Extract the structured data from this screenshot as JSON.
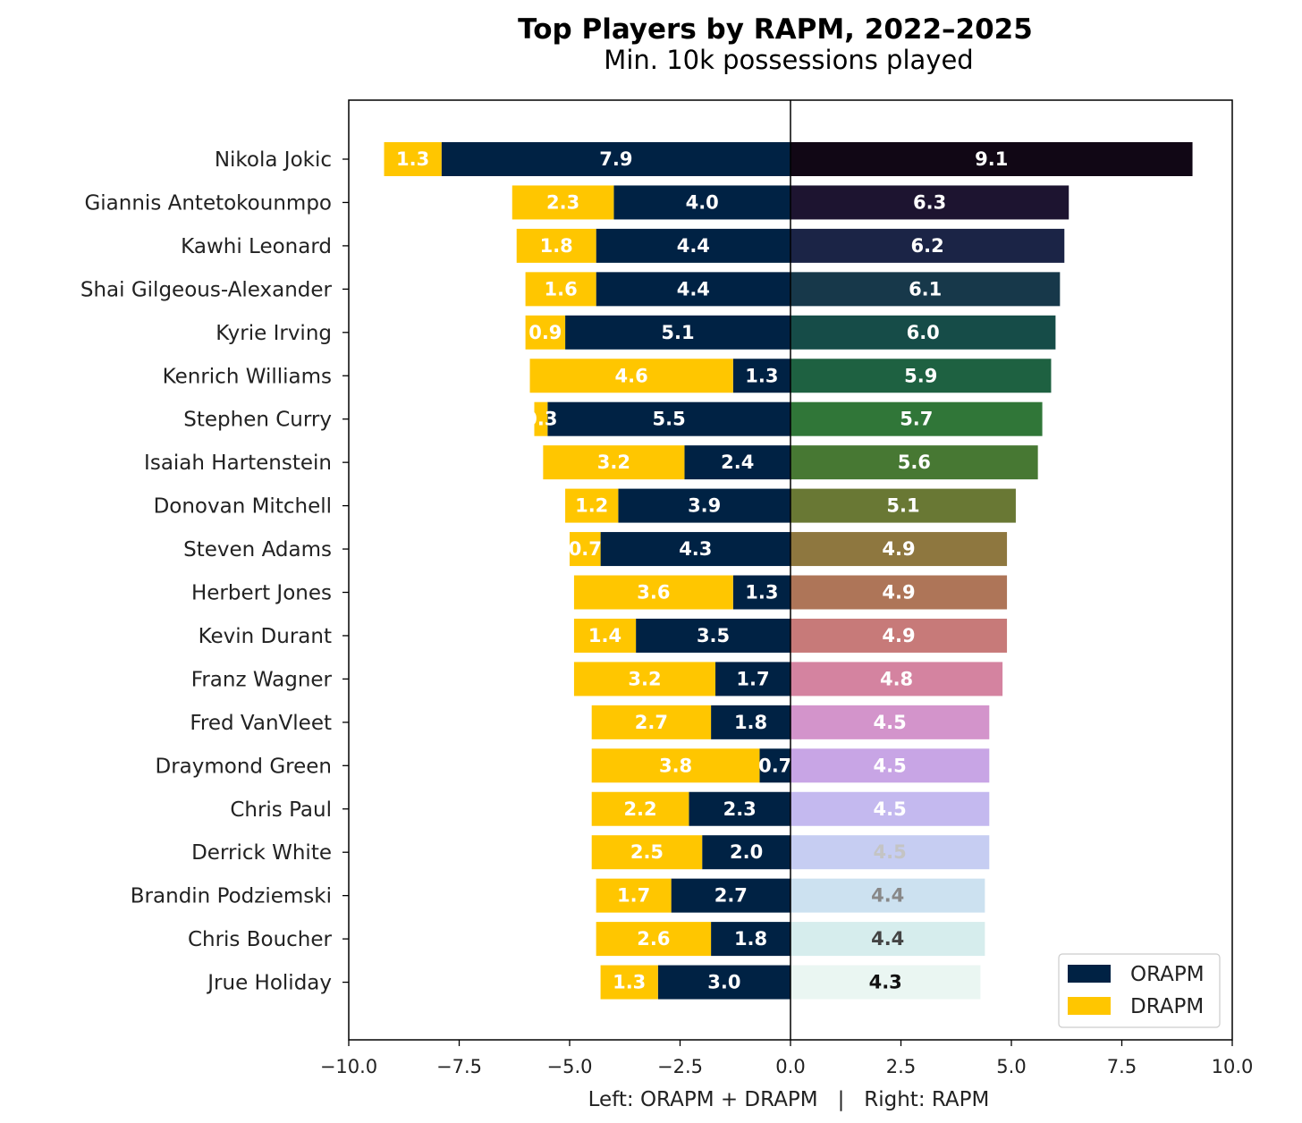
{
  "chart_data": {
    "type": "bar",
    "orientation": "horizontal-diverging",
    "title": "Top Players by RAPM, 2022–2025",
    "subtitle": "Min. 10k possessions played",
    "xlabel": "Left: ORAPM + DRAPM   |   Right: RAPM",
    "xlim": [
      -10,
      10
    ],
    "xticks": [
      -10.0,
      -7.5,
      -5.0,
      -2.5,
      0.0,
      2.5,
      5.0,
      7.5,
      10.0
    ],
    "xtick_labels": [
      "−10.0",
      "−7.5",
      "−5.0",
      "−2.5",
      "0.0",
      "2.5",
      "5.0",
      "7.5",
      "10.0"
    ],
    "categories": [
      "Nikola Jokic",
      "Giannis Antetokounmpo",
      "Kawhi Leonard",
      "Shai Gilgeous-Alexander",
      "Kyrie Irving",
      "Kenrich Williams",
      "Stephen Curry",
      "Isaiah Hartenstein",
      "Donovan Mitchell",
      "Steven Adams",
      "Herbert Jones",
      "Kevin Durant",
      "Franz Wagner",
      "Fred VanVleet",
      "Draymond Green",
      "Chris Paul",
      "Derrick White",
      "Brandin Podziemski",
      "Chris Boucher",
      "Jrue Holiday"
    ],
    "series": [
      {
        "name": "ORAPM",
        "color": "#002244",
        "values": [
          7.9,
          4.0,
          4.4,
          4.4,
          5.1,
          1.3,
          5.5,
          2.4,
          3.9,
          4.3,
          1.3,
          3.5,
          1.7,
          1.8,
          0.7,
          2.3,
          2.0,
          2.7,
          1.8,
          3.0
        ]
      },
      {
        "name": "DRAPM",
        "color": "#FFC600",
        "values": [
          1.3,
          2.3,
          1.8,
          1.6,
          0.9,
          4.6,
          0.3,
          3.2,
          1.2,
          0.7,
          3.6,
          1.4,
          3.2,
          2.7,
          3.8,
          2.2,
          2.5,
          1.7,
          2.6,
          1.3
        ]
      },
      {
        "name": "RAPM",
        "values": [
          9.1,
          6.3,
          6.2,
          6.1,
          6.0,
          5.9,
          5.7,
          5.6,
          5.1,
          4.9,
          4.9,
          4.9,
          4.8,
          4.5,
          4.5,
          4.5,
          4.5,
          4.4,
          4.4,
          4.3
        ],
        "colors": [
          "#110715",
          "#1D1430",
          "#1B2446",
          "#17384A",
          "#164C48",
          "#1E6141",
          "#307638",
          "#477833",
          "#697834",
          "#8E773F",
          "#AE7558",
          "#C77A79",
          "#D483A0",
          "#D394CB",
          "#C8A5E5",
          "#C4B9EF",
          "#C6CDF2",
          "#CCE1F0",
          "#D6EDED",
          "#EAF6F2"
        ],
        "label_colors": [
          "#ffffff",
          "#ffffff",
          "#ffffff",
          "#ffffff",
          "#ffffff",
          "#ffffff",
          "#ffffff",
          "#ffffff",
          "#ffffff",
          "#ffffff",
          "#ffffff",
          "#ffffff",
          "#ffffff",
          "#ffffff",
          "#ffffff",
          "#ffffff",
          "#c4c4c4",
          "#888888",
          "#444444",
          "#111111"
        ]
      }
    ],
    "legend": {
      "position": "lower-right",
      "entries": [
        "ORAPM",
        "DRAPM"
      ]
    },
    "grid": false
  }
}
